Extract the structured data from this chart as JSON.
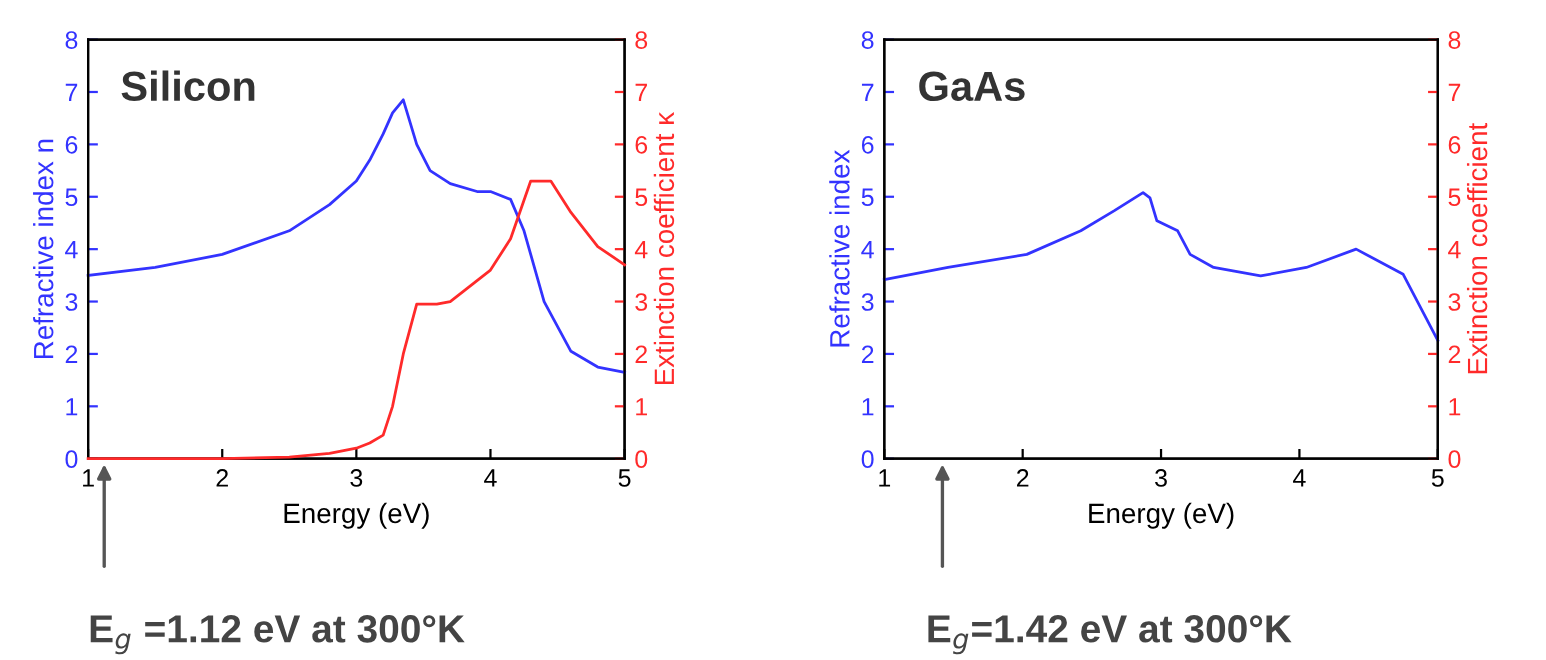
{
  "chart_data": [
    {
      "type": "line",
      "title": "Silicon",
      "xlabel": "Energy (eV)",
      "ylabel": "Refractive index n",
      "y2label": "Extinction coefficient κ",
      "xlim": [
        1,
        5
      ],
      "xticks": [
        1,
        2,
        3,
        4,
        5
      ],
      "ylim": [
        0,
        8
      ],
      "yticks": [
        0,
        1,
        2,
        3,
        4,
        5,
        6,
        7,
        8
      ],
      "y2lim": [
        0,
        8
      ],
      "y2ticks": [
        0,
        1,
        2,
        3,
        4,
        5,
        6,
        7,
        8
      ],
      "grid": false,
      "legend": false,
      "series": [
        {
          "color": "#3333ff",
          "x": [
            1.0,
            1.5,
            2.0,
            2.5,
            2.8,
            3.0,
            3.1,
            3.2,
            3.27,
            3.35,
            3.45,
            3.55,
            3.7,
            3.9,
            4.0,
            4.15,
            4.25,
            4.4,
            4.6,
            4.8,
            5.0
          ],
          "values": [
            3.5,
            3.65,
            3.9,
            4.35,
            4.85,
            5.3,
            5.7,
            6.2,
            6.6,
            6.85,
            6.0,
            5.5,
            5.25,
            5.1,
            5.1,
            4.95,
            4.35,
            3.0,
            2.05,
            1.75,
            1.65
          ]
        },
        {
          "color": "#ff2a2a",
          "axis": "y2",
          "x": [
            1.0,
            2.0,
            2.5,
            2.8,
            3.0,
            3.1,
            3.2,
            3.27,
            3.35,
            3.45,
            3.6,
            3.7,
            3.85,
            4.0,
            4.15,
            4.3,
            4.45,
            4.6,
            4.8,
            5.0
          ],
          "values": [
            0,
            0,
            0.03,
            0.1,
            0.2,
            0.3,
            0.45,
            1.0,
            2.0,
            2.95,
            2.95,
            3.0,
            3.3,
            3.6,
            4.2,
            5.3,
            5.3,
            4.7,
            4.05,
            3.7
          ]
        }
      ],
      "annotations": [
        {
          "text": "E$_{g}$ =1.12 eV at 300°K",
          "x": 1.12,
          "y": 0
        }
      ]
    },
    {
      "type": "line",
      "title": "GaAs",
      "xlabel": "Energy (eV)",
      "ylabel": "Refractive index",
      "y2label": "Extinction coefficient",
      "xlim": [
        1,
        5
      ],
      "xticks": [
        1,
        2,
        3,
        4,
        5
      ],
      "ylim": [
        0,
        8
      ],
      "yticks": [
        0,
        1,
        2,
        3,
        4,
        5,
        6,
        7,
        8
      ],
      "y2lim": [
        0,
        8
      ],
      "y2ticks": [
        0,
        1,
        2,
        3,
        4,
        5,
        6,
        7,
        8
      ],
      "grid": false,
      "legend": false,
      "series": [
        {
          "color": "#3333ff",
          "x": [
            1.0,
            1.46,
            2.03,
            2.42,
            2.66,
            2.87,
            2.92,
            2.97,
            3.12,
            3.21,
            3.38,
            3.72,
            4.05,
            4.41,
            4.75,
            5.0
          ],
          "values": [
            3.42,
            3.65,
            3.9,
            4.35,
            4.73,
            5.08,
            4.98,
            4.54,
            4.35,
            3.9,
            3.65,
            3.49,
            3.65,
            4.0,
            3.52,
            2.26
          ]
        }
      ],
      "annotations": [
        "E$_{g}$=1.42 eV at 300°K"
      ]
    }
  ]
}
